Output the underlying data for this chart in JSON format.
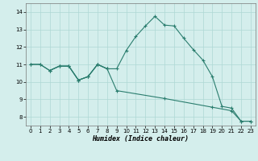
{
  "line1_x": [
    0,
    1,
    2,
    3,
    4,
    5,
    6,
    7,
    8,
    9,
    10,
    11,
    12,
    13,
    14,
    15,
    16,
    17,
    18,
    19,
    20,
    21,
    22,
    23
  ],
  "line1_y": [
    11.0,
    11.0,
    10.65,
    10.9,
    10.9,
    10.1,
    10.3,
    11.0,
    10.75,
    10.75,
    11.8,
    12.6,
    13.2,
    13.75,
    13.25,
    13.2,
    12.5,
    11.85,
    11.25,
    10.3,
    8.6,
    8.5,
    7.75,
    7.75
  ],
  "line2_x": [
    0,
    1,
    2,
    3,
    4,
    5,
    6,
    7,
    8,
    9,
    14,
    19,
    21,
    22,
    23
  ],
  "line2_y": [
    11.0,
    11.0,
    10.65,
    10.9,
    10.9,
    10.1,
    10.3,
    11.0,
    10.75,
    9.5,
    9.05,
    8.55,
    8.35,
    7.75,
    7.75
  ],
  "line3_x": [
    2,
    3,
    4,
    5,
    6,
    7,
    8
  ],
  "line3_y": [
    10.65,
    10.9,
    10.9,
    10.1,
    10.3,
    11.0,
    10.75
  ],
  "color": "#2a7d6e",
  "bg_color": "#d4eeec",
  "grid_color": "#aed8d5",
  "xlabel": "Humidex (Indice chaleur)",
  "ylim": [
    7.5,
    14.5
  ],
  "xlim": [
    -0.5,
    23.5
  ],
  "yticks": [
    8,
    9,
    10,
    11,
    12,
    13,
    14
  ],
  "xticks": [
    0,
    1,
    2,
    3,
    4,
    5,
    6,
    7,
    8,
    9,
    10,
    11,
    12,
    13,
    14,
    15,
    16,
    17,
    18,
    19,
    20,
    21,
    22,
    23
  ]
}
